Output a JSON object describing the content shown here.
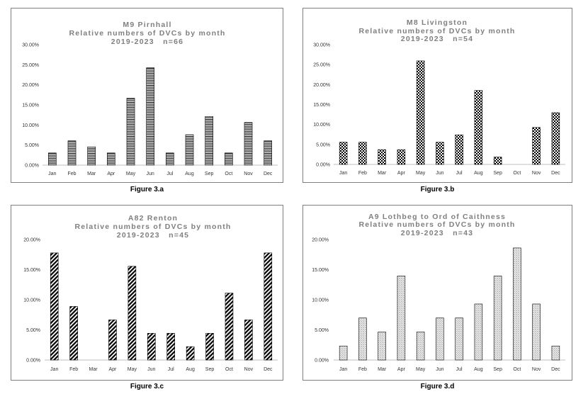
{
  "figures": [
    {
      "caption": "Figure 3.a"
    },
    {
      "caption": "Figure 3.b"
    },
    {
      "caption": "Figure 3.c"
    },
    {
      "caption": "Figure 3.d"
    }
  ],
  "colors": {
    "frame": "#7f7f7f",
    "title": "#7f7f7f",
    "bar": "#000000",
    "axis": "#bfbfbf"
  },
  "chart_data": [
    {
      "type": "bar",
      "title": "M9 Pirnhall",
      "subtitle": "Relative numbers of DVCs by month",
      "subtitle2": "2019-2023   n=66",
      "categories": [
        "Jan",
        "Feb",
        "Mar",
        "Apr",
        "May",
        "Jun",
        "Jul",
        "Aug",
        "Sep",
        "Oct",
        "Nov",
        "Dec"
      ],
      "values": [
        3.03,
        6.06,
        4.55,
        3.03,
        16.67,
        24.24,
        3.03,
        7.58,
        12.12,
        3.03,
        10.61,
        6.06
      ],
      "ylim": [
        0,
        30
      ],
      "yticks": [
        "0.00%",
        "5.00%",
        "10.00%",
        "15.00%",
        "20.00%",
        "25.00%",
        "30.00%"
      ],
      "pattern": "horizontal-lines",
      "grid": false
    },
    {
      "type": "bar",
      "title": "M8 Livingston",
      "subtitle": "Relative numbers of DVCs by month",
      "subtitle2": "2019-2023   n=54",
      "categories": [
        "Jan",
        "Feb",
        "Mar",
        "Apr",
        "May",
        "Jun",
        "Jul",
        "Aug",
        "Sep",
        "Oct",
        "Nov",
        "Dec"
      ],
      "values": [
        5.56,
        5.56,
        3.7,
        3.7,
        25.93,
        5.56,
        7.41,
        18.52,
        1.85,
        0,
        9.26,
        12.96
      ],
      "ylim": [
        0,
        30
      ],
      "yticks": [
        "0.00%",
        "5.00%",
        "10.00%",
        "15.00%",
        "20.00%",
        "25.00%",
        "30.00%"
      ],
      "pattern": "checkerboard",
      "grid": false
    },
    {
      "type": "bar",
      "title": "A82 Renton",
      "subtitle": "Relative numbers of DVCs by month",
      "subtitle2": "2019-2023   n=45",
      "categories": [
        "Jan",
        "Feb",
        "Mar",
        "Apr",
        "May",
        "Jun",
        "Jul",
        "Aug",
        "Sep",
        "Oct",
        "Nov",
        "Dec"
      ],
      "values": [
        17.78,
        8.89,
        0,
        6.67,
        15.56,
        4.44,
        4.44,
        2.22,
        4.44,
        11.11,
        6.67,
        17.78
      ],
      "ylim": [
        0,
        20
      ],
      "yticks": [
        "0.00%",
        "5.00%",
        "10.00%",
        "15.00%",
        "20.00%"
      ],
      "pattern": "diagonal-stripes",
      "grid": false
    },
    {
      "type": "bar",
      "title": "A9 Lothbeg to Ord of Caithness",
      "subtitle": "Relative numbers of DVCs by month",
      "subtitle2": "2019-2023   n=43",
      "categories": [
        "Jan",
        "Feb",
        "Mar",
        "Apr",
        "May",
        "Jun",
        "Jul",
        "Aug",
        "Sep",
        "Oct",
        "Nov",
        "Dec"
      ],
      "values": [
        2.33,
        6.98,
        4.65,
        13.95,
        4.65,
        6.98,
        6.98,
        9.3,
        13.95,
        18.6,
        9.3,
        2.33
      ],
      "ylim": [
        0,
        20
      ],
      "yticks": [
        "0.00%",
        "5.00%",
        "10.00%",
        "15.00%",
        "20.00%"
      ],
      "pattern": "dotted-crosshatch",
      "grid": false
    }
  ]
}
